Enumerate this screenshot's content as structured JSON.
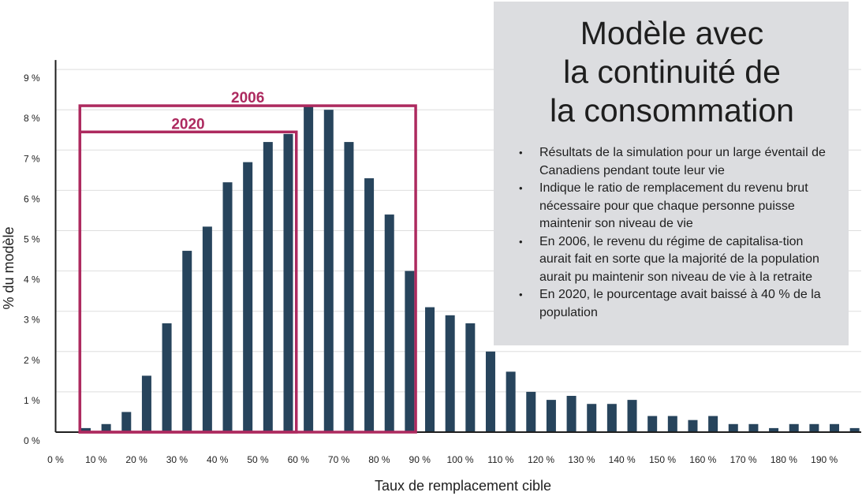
{
  "colors": {
    "bar": "#27445c",
    "box": "#ad2a5f",
    "panel": "#dcdde0",
    "grid": "#dedede",
    "axis": "#1e1e1e"
  },
  "chart_data": {
    "type": "bar",
    "xlabel": "Taux de remplacement cible",
    "ylabel": "% du modèle",
    "ylim": [
      0,
      9
    ],
    "xlim": [
      0,
      200
    ],
    "x_ticks": [
      "0 %",
      "10 %",
      "20 %",
      "30 %",
      "40 %",
      "50 %",
      "60 %",
      "70 %",
      "80 %",
      "90 %",
      "100 %",
      "110 %",
      "120 %",
      "130 %",
      "140 %",
      "150 %",
      "160 %",
      "170 %",
      "180 %",
      "190 %"
    ],
    "y_ticks": [
      "0 %",
      "1 %",
      "2 %",
      "3 %",
      "4 %",
      "5 %",
      "6 %",
      "7 %",
      "8 %",
      "9 %"
    ],
    "x": [
      7.5,
      12.5,
      17.5,
      22.5,
      27.5,
      32.5,
      37.5,
      42.5,
      47.5,
      52.5,
      57.5,
      62.5,
      67.5,
      72.5,
      77.5,
      82.5,
      87.5,
      92.5,
      97.5,
      102.5,
      107.5,
      112.5,
      117.5,
      122.5,
      127.5,
      132.5,
      137.5,
      142.5,
      147.5,
      152.5,
      157.5,
      162.5,
      167.5,
      172.5,
      177.5,
      182.5,
      187.5,
      192.5,
      197.5
    ],
    "values": [
      0.1,
      0.2,
      0.5,
      1.4,
      2.7,
      4.5,
      5.1,
      6.2,
      6.7,
      7.2,
      7.4,
      8.1,
      8.0,
      7.2,
      6.3,
      5.4,
      4.0,
      3.1,
      2.9,
      2.7,
      2.0,
      1.5,
      1.0,
      0.8,
      0.9,
      0.7,
      0.7,
      0.8,
      0.4,
      0.4,
      0.3,
      0.4,
      0.2,
      0.2,
      0.1,
      0.2,
      0.2,
      0.2,
      0.1
    ],
    "grid": true,
    "annotations": [
      {
        "label": "2006",
        "x_from": 6,
        "x_to": 89,
        "y_top": 8.1
      },
      {
        "label": "2020",
        "x_from": 6,
        "x_to": 59.5,
        "y_top": 7.45
      }
    ]
  },
  "info_box": {
    "title_lines": [
      "Modèle avec",
      "la continuité de",
      "la consommation"
    ],
    "bullets": [
      "Résultats de la simulation pour un large éventail de Canadiens pendant toute leur vie",
      "Indique le ratio de remplacement du revenu brut nécessaire pour que chaque personne puisse maintenir son niveau de vie",
      "En 2006, le revenu du régime de capitalisa-tion aurait fait en sorte que la majorité de la population aurait pu maintenir son niveau de vie à la retraite",
      "En 2020, le pourcentage avait baissé à 40 % de la population"
    ]
  }
}
